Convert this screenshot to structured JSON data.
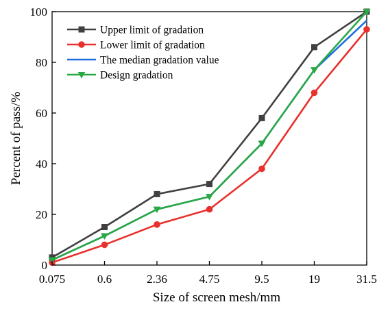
{
  "chart_data": {
    "type": "line",
    "title": "",
    "xlabel": "Size of screen mesh/mm",
    "ylabel": "Percent of pass/%",
    "categories": [
      "0.075",
      "0.6",
      "2.36",
      "4.75",
      "9.5",
      "19",
      "31.5"
    ],
    "ylim": [
      0,
      100
    ],
    "yticks": [
      "0",
      "20",
      "40",
      "60",
      "80",
      "100"
    ],
    "grid": false,
    "legend_position": "top-left",
    "series": [
      {
        "name": "Upper limit of gradation",
        "values": [
          3,
          15,
          28,
          32,
          58,
          86,
          100
        ],
        "color": "#404040",
        "marker": "square"
      },
      {
        "name": "Lower limit of gradation",
        "values": [
          1,
          8,
          16,
          22,
          38,
          68,
          93
        ],
        "color": "#e8302c",
        "marker": "circle"
      },
      {
        "name": "The median gradation value",
        "values": [
          2,
          11.5,
          22,
          27,
          48,
          77,
          96.5
        ],
        "color": "#1f6fe0",
        "marker": "none"
      },
      {
        "name": "Design gradation",
        "values": [
          2,
          11.5,
          22,
          27,
          48,
          77,
          100
        ],
        "color": "#29a844",
        "marker": "triangle-down"
      }
    ]
  }
}
